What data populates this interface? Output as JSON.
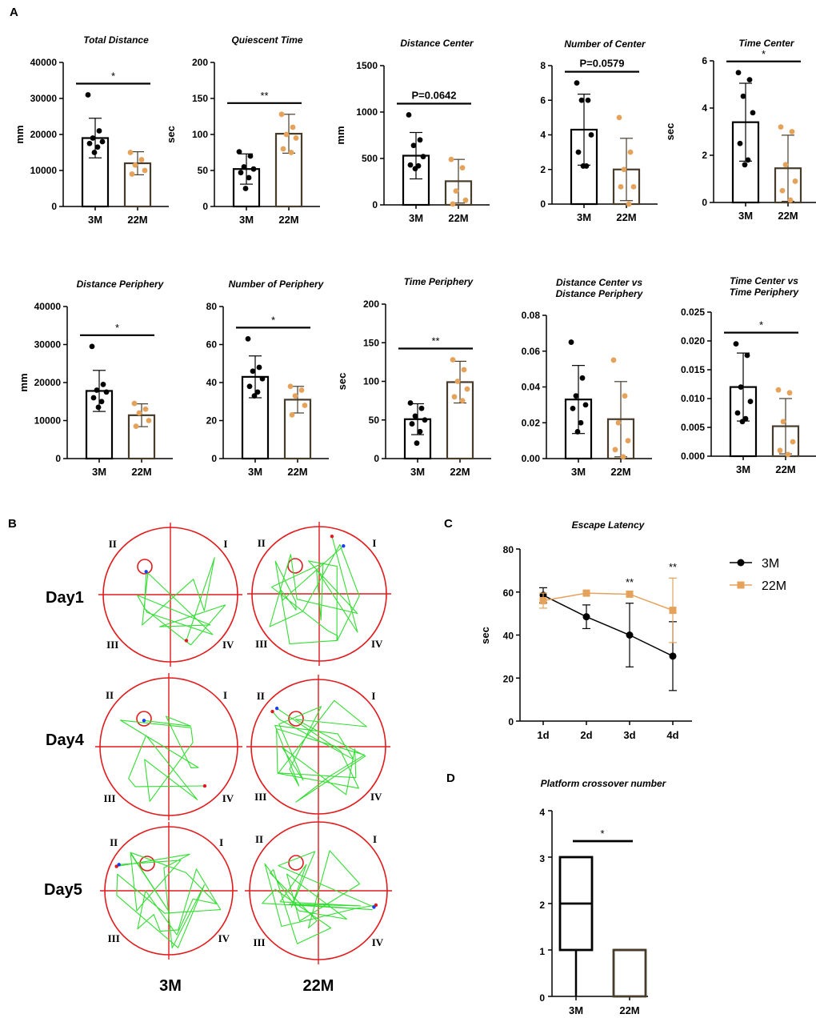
{
  "panel_labels": [
    "A",
    "B",
    "C",
    "D"
  ],
  "colors": {
    "young": "#000000",
    "old": "#e5a25b",
    "old_bar": "#473c2c",
    "pool": "#e31a1c",
    "path": "#33dd33"
  },
  "chart_data": [
    {
      "panel": "A",
      "type": "bar",
      "title": "Total Distance",
      "ylabel": "mm",
      "categories": [
        "3M",
        "22M"
      ],
      "yticks": [
        "0",
        "10000",
        "20000",
        "30000",
        "40000"
      ],
      "ylim": [
        0,
        40000
      ],
      "means": [
        19000,
        12000
      ],
      "sd": [
        5500,
        3200
      ],
      "points": [
        [
          31000,
          21000,
          19000,
          18000,
          17500,
          16500,
          15000
        ],
        [
          15000,
          13000,
          11500,
          10000,
          9000
        ]
      ],
      "sig": "*"
    },
    {
      "panel": "A",
      "type": "bar",
      "title": "Quiescent Time",
      "ylabel": "sec",
      "categories": [
        "3M",
        "22M"
      ],
      "yticks": [
        "0",
        "50",
        "100",
        "150",
        "200"
      ],
      "ylim": [
        0,
        200
      ],
      "means": [
        52,
        101
      ],
      "sd": [
        21,
        27
      ],
      "points": [
        [
          76,
          70,
          55,
          52,
          47,
          40,
          25
        ],
        [
          128,
          110,
          100,
          95,
          80,
          75
        ]
      ],
      "sig": "**"
    },
    {
      "panel": "A",
      "type": "bar",
      "title": "Distance Center",
      "ylabel": "mm",
      "categories": [
        "3M",
        "22M"
      ],
      "yticks": [
        "0",
        "500",
        "1000",
        "1500"
      ],
      "ylim": [
        0,
        1500
      ],
      "means": [
        530,
        255
      ],
      "sd": [
        250,
        235
      ],
      "points": [
        [
          970,
          700,
          640,
          520,
          430,
          420,
          390
        ],
        [
          490,
          400,
          150,
          50,
          10
        ]
      ],
      "sig": "P=0.0642"
    },
    {
      "panel": "A",
      "type": "bar",
      "title": "Number of Center",
      "ylabel": "",
      "categories": [
        "3M",
        "22M"
      ],
      "yticks": [
        "0",
        "2",
        "4",
        "6",
        "8"
      ],
      "ylim": [
        0,
        8
      ],
      "means": [
        4.3,
        2.0
      ],
      "sd": [
        2.05,
        1.8
      ],
      "points": [
        [
          7,
          6,
          6,
          4,
          3,
          2.2,
          2.2
        ],
        [
          5,
          3,
          2,
          1,
          1,
          0
        ]
      ],
      "sig": "P=0.0579"
    },
    {
      "panel": "A",
      "type": "bar",
      "title": "Time Center",
      "ylabel": "sec",
      "categories": [
        "3M",
        "22M"
      ],
      "yticks": [
        "0",
        "2",
        "4",
        "6"
      ],
      "ylim": [
        0,
        6
      ],
      "means": [
        3.4,
        1.45
      ],
      "sd": [
        1.65,
        1.4
      ],
      "points": [
        [
          5.5,
          5.2,
          4.5,
          3.8,
          2.5,
          1.8,
          1.6
        ],
        [
          3.2,
          3.0,
          1.6,
          0.9,
          0.5,
          0.1
        ]
      ],
      "sig": "*"
    },
    {
      "panel": "A",
      "type": "bar",
      "title": "Distance Periphery",
      "ylabel": "mm",
      "categories": [
        "3M",
        "22M"
      ],
      "yticks": [
        "0",
        "10000",
        "20000",
        "30000",
        "40000"
      ],
      "ylim": [
        0,
        40000
      ],
      "means": [
        17800,
        11400
      ],
      "sd": [
        5400,
        3000
      ],
      "points": [
        [
          29500,
          19500,
          18000,
          17500,
          16000,
          15000,
          13500
        ],
        [
          14500,
          13000,
          12000,
          10000,
          8500
        ]
      ],
      "sig": "*"
    },
    {
      "panel": "A",
      "type": "bar",
      "title": "Number of Periphery",
      "ylabel": "",
      "categories": [
        "3M",
        "22M"
      ],
      "yticks": [
        "0",
        "20",
        "40",
        "60",
        "80"
      ],
      "ylim": [
        0,
        80
      ],
      "means": [
        43,
        31
      ],
      "sd": [
        11,
        7
      ],
      "points": [
        [
          63,
          48,
          46,
          42,
          38,
          35,
          33
        ],
        [
          38,
          36,
          33,
          28,
          23
        ]
      ],
      "sig": "*"
    },
    {
      "panel": "A",
      "type": "bar",
      "title": "Time Periphery",
      "ylabel": "sec",
      "categories": [
        "3M",
        "22M"
      ],
      "yticks": [
        "0",
        "50",
        "100",
        "150",
        "200"
      ],
      "ylim": [
        0,
        200
      ],
      "means": [
        51,
        99
      ],
      "sd": [
        20,
        27
      ],
      "points": [
        [
          72,
          65,
          55,
          50,
          45,
          35,
          20
        ],
        [
          128,
          115,
          100,
          90,
          80,
          75
        ]
      ],
      "sig": "**"
    },
    {
      "panel": "A",
      "type": "bar",
      "title": "Distance Center vs Distance Periphery",
      "title_lines": [
        "Distance Center vs",
        "Distance Periphery"
      ],
      "ylabel": "",
      "categories": [
        "3M",
        "22M"
      ],
      "yticks": [
        "0.00",
        "0.02",
        "0.04",
        "0.06",
        "0.08"
      ],
      "ylim": [
        0,
        0.08
      ],
      "means": [
        0.033,
        0.022
      ],
      "sd": [
        0.019,
        0.021
      ],
      "points": [
        [
          0.065,
          0.045,
          0.035,
          0.03,
          0.028,
          0.02,
          0.015
        ],
        [
          0.055,
          0.035,
          0.02,
          0.01,
          0.005,
          0.001
        ]
      ],
      "sig": ""
    },
    {
      "panel": "A",
      "type": "bar",
      "title": "Time Center vs Time Periphery",
      "title_lines": [
        "Time Center vs",
        "Time Periphery"
      ],
      "ylabel": "",
      "categories": [
        "3M",
        "22M"
      ],
      "yticks": [
        "0.000",
        "0.005",
        "0.010",
        "0.015",
        "0.020",
        "0.025"
      ],
      "ylim": [
        0,
        0.025
      ],
      "means": [
        0.012,
        0.0052
      ],
      "sd": [
        0.0059,
        0.0048
      ],
      "points": [
        [
          0.0195,
          0.0175,
          0.012,
          0.0095,
          0.0075,
          0.0065,
          0.006
        ],
        [
          0.0115,
          0.011,
          0.006,
          0.0025,
          0.001,
          0.0003
        ]
      ],
      "sig": "*"
    },
    {
      "panel": "B",
      "type": "track-plot",
      "columns": [
        "3M",
        "22M"
      ],
      "rows": [
        "Day1",
        "Day4",
        "Day5"
      ],
      "quadrants": [
        "I",
        "II",
        "III",
        "IV"
      ]
    },
    {
      "panel": "C",
      "type": "line",
      "title": "Escape Latency",
      "ylabel": "sec",
      "categories": [
        "1d",
        "2d",
        "3d",
        "4d"
      ],
      "yticks": [
        "0",
        "20",
        "40",
        "60",
        "80"
      ],
      "ylim": [
        0,
        80
      ],
      "series": [
        {
          "name": "3M",
          "values": [
            58.5,
            48.5,
            40,
            30.2
          ],
          "sd": [
            3.5,
            5.5,
            14.8,
            16
          ]
        },
        {
          "name": "22M",
          "values": [
            56,
            59.5,
            59,
            51.5
          ],
          "sd": [
            3.5,
            0,
            0,
            15
          ]
        }
      ],
      "annotations": [
        {
          "category": "3d",
          "text": "**"
        },
        {
          "category": "4d",
          "text": "**"
        }
      ]
    },
    {
      "panel": "D",
      "type": "box",
      "title": "Platform crossover number",
      "categories": [
        "3M",
        "22M"
      ],
      "yticks": [
        "0",
        "1",
        "2",
        "3",
        "4"
      ],
      "ylim": [
        0,
        4
      ],
      "boxes": [
        {
          "min": 0,
          "q1": 1,
          "median": 2,
          "q3": 3,
          "max": 3
        },
        {
          "min": 0,
          "q1": 0,
          "median": 1,
          "q3": 1,
          "max": 1
        }
      ],
      "sig": "*"
    }
  ]
}
